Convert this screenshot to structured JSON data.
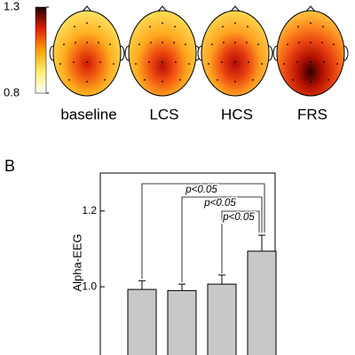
{
  "chart_data": [
    {
      "type": "topomap",
      "categories": [
        "baseline",
        "LCS",
        "HCS",
        "FRS"
      ],
      "ylim": [
        0.8,
        1.3
      ],
      "yticks": [
        0.8,
        1.3
      ]
    },
    {
      "type": "bar",
      "panel_label": "B",
      "y_label": "Alpha-EEG",
      "categories": [
        null,
        null,
        null,
        null
      ],
      "values": [
        0.993,
        0.99,
        1.007,
        1.094
      ],
      "errors": [
        0.023,
        0.017,
        0.024,
        0.042
      ],
      "color": "#c8c8c8",
      "ylim": [
        0.82,
        1.3
      ],
      "yticks": [
        {
          "value": 1.0,
          "label": "1.0"
        },
        {
          "value": 1.2,
          "label": "1.2"
        }
      ],
      "annotations": [
        "p<0.05",
        "p<0.05",
        "p<0.05"
      ]
    }
  ]
}
